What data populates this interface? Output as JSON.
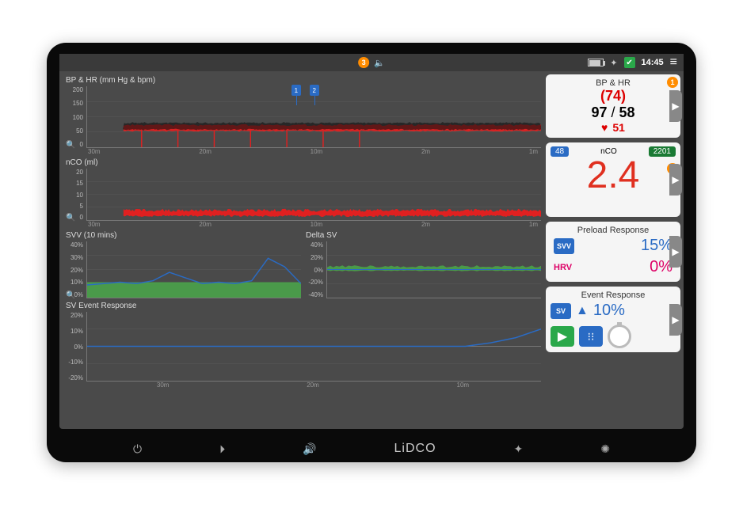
{
  "statusbar": {
    "alert_count": "3",
    "time": "14:45",
    "icons": {
      "battery": "battery-icon",
      "bright": "brightness-icon",
      "check": "check-icon",
      "menu": "menu-icon",
      "speaker": "speaker-icon"
    }
  },
  "colors": {
    "red": "#e02020",
    "darkred": "#b01010",
    "green": "#2aa84a",
    "darkgreen": "#1a7a34",
    "blue": "#2a6bc4",
    "orange": "#ff8c00",
    "panel_bg": "#f5f5f5",
    "screen_bg": "#4a4a4a",
    "grid": "#5a5a5a",
    "text_muted": "#bbb"
  },
  "charts": {
    "bphr": {
      "title": "BP & HR (mm Hg & bpm)",
      "ylim": [
        0,
        200
      ],
      "yticks": [
        0,
        50,
        100,
        150,
        200
      ],
      "xticks": [
        "30m",
        "20m",
        "10m",
        "2m",
        "1m"
      ],
      "height": 78,
      "series": {
        "bp_band_top": 70,
        "bp_band_bot": 55,
        "bp_color": "#e02020",
        "hr_line": 50,
        "hr_color": "#111",
        "segments": [
          [
            0.08,
            1.0
          ]
        ],
        "spikes": [
          0.12,
          0.2,
          0.28,
          0.36,
          0.44,
          0.52,
          0.6
        ]
      },
      "markers": [
        {
          "label": "1",
          "x": 0.45
        },
        {
          "label": "2",
          "x": 0.49
        }
      ]
    },
    "nco": {
      "title": "nCO (ml)",
      "ylim": [
        0,
        20
      ],
      "yticks": [
        0,
        5,
        10,
        15,
        20
      ],
      "xticks": [
        "30m",
        "20m",
        "10m",
        "2m",
        "1m"
      ],
      "height": 66,
      "series": {
        "band_top": 3.2,
        "band_bot": 2.0,
        "color": "#e02020",
        "segments": [
          [
            0.08,
            1.0
          ]
        ]
      }
    },
    "svv": {
      "title": "SVV (10 mins)",
      "ylim": [
        0,
        40
      ],
      "yticks": [
        0,
        10,
        20,
        30,
        40
      ],
      "ytick_suffix": "%",
      "height": 72,
      "series": {
        "fill_color": "#4aa84a",
        "fill_from": 0,
        "fill_to": 11,
        "line_color": "#2a6bc4",
        "line": [
          9,
          10,
          11,
          10,
          12,
          18,
          14,
          10,
          11,
          10,
          12,
          28,
          22,
          10
        ]
      }
    },
    "deltasv": {
      "title": "Delta SV",
      "ylim": [
        -40,
        40
      ],
      "yticks": [
        -40,
        -20,
        0,
        20,
        40
      ],
      "ytick_suffix": "%",
      "height": 72,
      "series": {
        "fill_color": "#4aa84a",
        "fill_center": 0,
        "amplitude": 6,
        "line_color": "#2a6bc4"
      }
    },
    "svevent": {
      "title": "SV Event Response",
      "ylim": [
        -20,
        20
      ],
      "yticks": [
        -20,
        -10,
        0,
        10,
        20
      ],
      "ytick_suffix": "%",
      "xticks": [
        "30m",
        "20m",
        "10m"
      ],
      "height": 88,
      "series": {
        "line_color": "#2a6bc4",
        "line": [
          0,
          0,
          0,
          0,
          0,
          0,
          0,
          0,
          0,
          0,
          0,
          0,
          0,
          0,
          0,
          0,
          2,
          5,
          10
        ]
      }
    }
  },
  "panels": {
    "bphr": {
      "title": "BP & HR",
      "badge": "1",
      "paren": "(74)",
      "sys": "97",
      "sep": "/",
      "dia": "58",
      "hr": "51",
      "hr_color": "#d00"
    },
    "nco": {
      "pill1": {
        "text": "48",
        "bg": "#2a6bc4"
      },
      "center": "nCO",
      "pill2": {
        "text": "2201",
        "bg": "#1a7a34"
      },
      "value": "2.4",
      "badge": "2",
      "value_color": "#e03020"
    },
    "preload": {
      "title": "Preload Response",
      "rows": [
        {
          "tag": "SVV",
          "tag_bg": "#2a6bc4",
          "val": "15%",
          "val_color": "#2a6bc4"
        },
        {
          "tag": "HRV",
          "tag_bg": "transparent",
          "tag_color": "#d06",
          "val": "0%",
          "val_color": "#d06"
        }
      ]
    },
    "event": {
      "title": "Event Response",
      "tag": "SV",
      "tag_bg": "#2a6bc4",
      "arrow": "▲",
      "val": "10%",
      "val_color": "#2a6bc4",
      "buttons": [
        {
          "name": "play-button",
          "bg": "#2aa84a",
          "glyph": "▶"
        },
        {
          "name": "tree-button",
          "bg": "#2a6bc4",
          "glyph": "⋔"
        }
      ]
    }
  },
  "bezel": {
    "logo": "LiDCO",
    "buttons": [
      "power",
      "skip",
      "sound",
      "gear",
      "bright"
    ]
  }
}
